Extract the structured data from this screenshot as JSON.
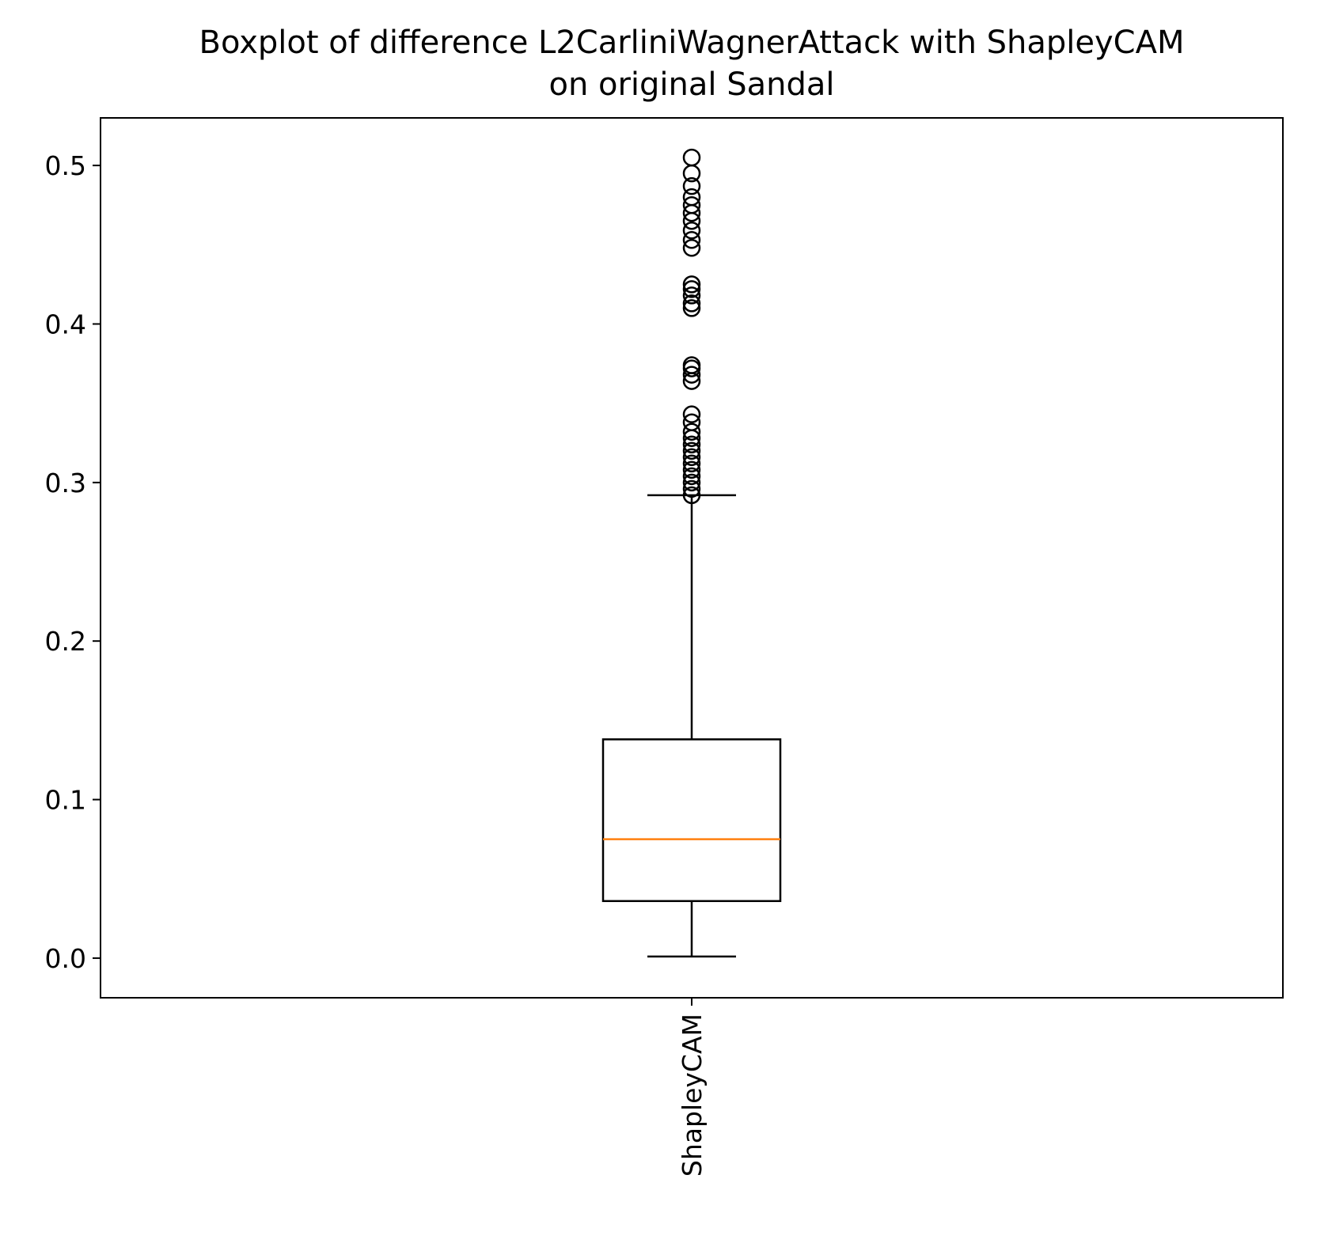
{
  "chart_data": {
    "type": "box",
    "title_lines": [
      "Boxplot of difference L2CarliniWagnerAttack with ShapleyCAM",
      "on original Sandal"
    ],
    "xlabel": "",
    "ylabel": "",
    "ylim": [
      -0.025,
      0.53
    ],
    "yticks": [
      0.0,
      0.1,
      0.2,
      0.3,
      0.4,
      0.5
    ],
    "ytick_labels": [
      "0.0",
      "0.1",
      "0.2",
      "0.3",
      "0.4",
      "0.5"
    ],
    "categories": [
      "ShapleyCAM"
    ],
    "xtick_rotation": 90,
    "grid": false,
    "boxes": [
      {
        "label": "ShapleyCAM",
        "whisker_low": 0.001,
        "q1": 0.036,
        "median": 0.075,
        "q3": 0.138,
        "whisker_high": 0.292,
        "outliers": [
          0.292,
          0.296,
          0.3,
          0.304,
          0.308,
          0.312,
          0.316,
          0.32,
          0.324,
          0.328,
          0.332,
          0.338,
          0.343,
          0.364,
          0.368,
          0.372,
          0.374,
          0.41,
          0.413,
          0.418,
          0.422,
          0.425,
          0.448,
          0.453,
          0.459,
          0.465,
          0.47,
          0.475,
          0.48,
          0.487,
          0.495,
          0.505
        ]
      }
    ],
    "colors": {
      "box": "#000000",
      "median": "#ff7f0e",
      "outlier": "#000000",
      "axes": "#000000",
      "background": "#ffffff"
    }
  }
}
